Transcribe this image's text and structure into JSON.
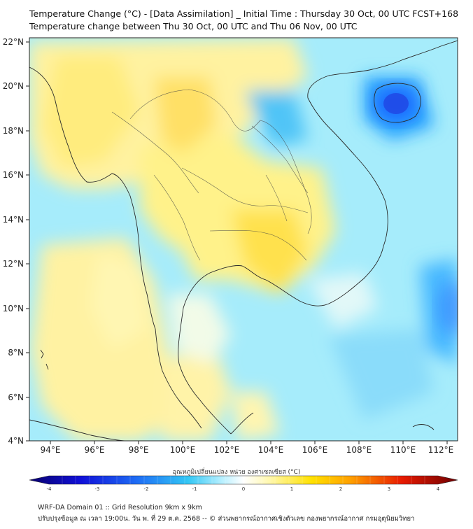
{
  "header": {
    "title": "Temperature Change (°C) - [Data Assimilation] _ Initial Time : Thursday 30 Oct, 00 UTC FCST+168",
    "subtitle": "Temperature change between Thu 30 Oct, 00 UTC and Thu 06 Nov, 00 UTC"
  },
  "axes": {
    "lat_labels": [
      "22°N",
      "20°N",
      "18°N",
      "16°N",
      "14°N",
      "12°N",
      "10°N",
      "8°N",
      "6°N",
      "4°N"
    ],
    "lon_labels": [
      "94°E",
      "96°E",
      "98°E",
      "100°E",
      "102°E",
      "104°E",
      "106°E",
      "108°E",
      "110°E",
      "112°E"
    ]
  },
  "colorbar": {
    "label": "อุณหภูมิเปลี่ยนแปลง หน่วย องศาเซลเซียส (°C)",
    "ticks": [
      "-4",
      "-3",
      "-2",
      "-1",
      "0",
      "1",
      "2",
      "3",
      "4"
    ],
    "min": -4,
    "max": 4
  },
  "footer": {
    "line1": "WRF-DA Domain 01 :: Grid Resolution 9km x 9km",
    "line2": "ปรับปรุงข้อมูล ณ เวลา 19:00น. วัน พ. ที่ 29 ต.ค. 2568 -- © ส่วนพยากรณ์อากาศเชิงตัวเลข กองพยากรณ์อากาศ กรมอุตุนิยมวิทยา"
  },
  "colors": {
    "cold_strong": "#1f3fff",
    "cold": "#22a8ff",
    "cool": "#8ee6ff",
    "neutral": "#e6f8f0",
    "warm": "#fff07a",
    "hot": "#f7c800"
  }
}
